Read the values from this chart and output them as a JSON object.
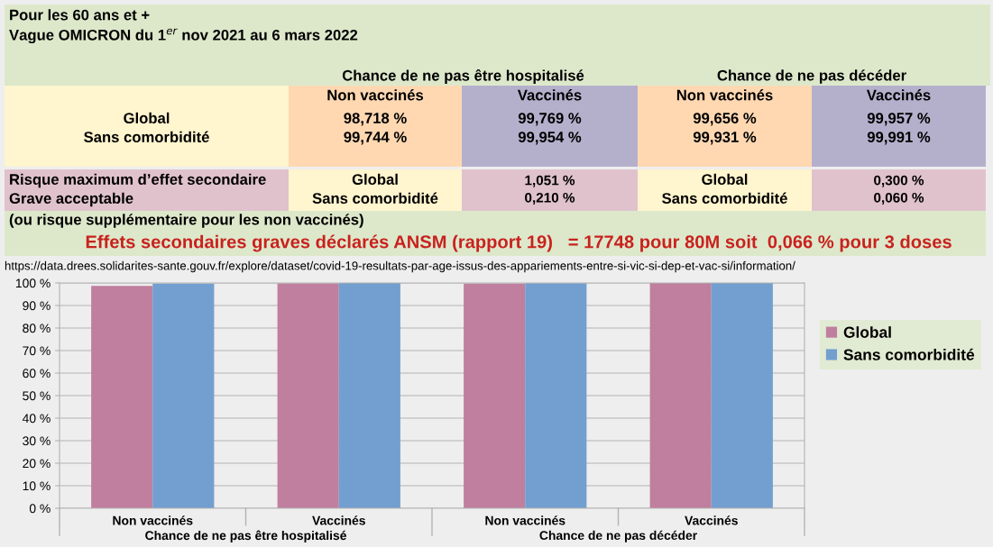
{
  "chart_data": {
    "type": "bar",
    "title": "Pour les 60 ans et +",
    "subtitle": "Vague OMICRON du 1$^{er}$ nov 2021 au 6 mars 2022",
    "categories": [
      "Non vaccinés",
      "Vaccinés",
      "Non vaccinés",
      "Vaccinés"
    ],
    "series": [
      {
        "name": "Global",
        "color": "#c07f9e",
        "values": [
          98.718,
          99.769,
          99.656,
          99.957
        ]
      },
      {
        "name": "Sans comorbidité",
        "color": "#729fcf",
        "values": [
          99.744,
          99.954,
          99.931,
          99.991
        ]
      }
    ],
    "ylim": [
      0,
      100
    ],
    "yticks": [
      {
        "value": 0,
        "label": "0 %"
      },
      {
        "value": 10,
        "label": "10 %"
      },
      {
        "value": 20,
        "label": "20 %"
      },
      {
        "value": 30,
        "label": "30 %"
      },
      {
        "value": 40,
        "label": "40 %"
      },
      {
        "value": 50,
        "label": "50 %"
      },
      {
        "value": 60,
        "label": "60 %"
      },
      {
        "value": 70,
        "label": "70 %"
      },
      {
        "value": 80,
        "label": "80 %"
      },
      {
        "value": 90,
        "label": "90 %"
      },
      {
        "value": 100,
        "label": "100 %"
      }
    ],
    "grid": "y",
    "legend": "right",
    "annotations": [
      "Chance de ne pas être hospitalisé",
      "Chance de ne pas décéder",
      "Non vaccinés",
      "Vaccinés",
      "Non vaccinés",
      "Vaccinés",
      "Global\nSans comorbidité",
      "98,718 %\n99,744 %",
      "99,769 %\n99,954 %",
      "99,656 %\n99,931 %",
      "99,957 %\n99,991 %",
      "Risque maximum d’effet secondaire\nGrave acceptable",
      "Global\nSans comorbidité",
      "1,051 %\n0,210 %",
      "Global\nSans comorbidité",
      "0,300 %\n0,060 %",
      "(ou risque supplémentaire pour les non vaccinés)",
      "Effets secondaires graves déclarés ANSM (rapport 19)   = 17748 pour 80M soit  0,066 % pour 3 doses",
      "https://data.drees.solidarites-sante.gouv.fr/explore/dataset/covid-19-resultats-par-age-issus-des-appariements-entre-si-vic-si-dep-et-vac-si/information/",
      "Chance de ne pas être hospitalisé",
      "Chance de ne pas décéder"
    ]
  }
}
